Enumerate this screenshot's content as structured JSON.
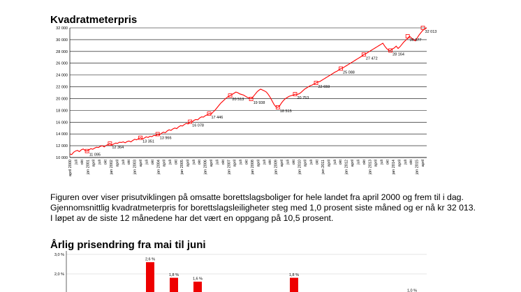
{
  "heading1": "Kvadratmeterpris",
  "heading2": "Årlig prisendring fra mai til juni",
  "paragraph": "Figuren over viser prisutviklingen på omsatte borettslagsboliger for hele landet fra april 2000 og frem til i dag. Gjennomsnittlig kvadratmeterpris for borettslagsleiligheter steg med 1,0 prosent siste måned og er nå kr 32 013. I løpet av de siste 12 månedene har det vært en oppgang på 10,5 prosent.",
  "colors": {
    "line": "#ff0000",
    "bar": "#ee0000",
    "grid": "#000000"
  },
  "chart_data": [
    {
      "type": "line",
      "title": "Kvadratmeterpris",
      "ylim": [
        10000,
        32000
      ],
      "yticks": [
        10000,
        12000,
        14000,
        16000,
        18000,
        20000,
        22000,
        24000,
        26000,
        28000,
        30000,
        32000
      ],
      "ytick_labels": [
        "10 000",
        "12 000",
        "14 000",
        "16 000",
        "18 000",
        "20 000",
        "22 000",
        "24 000",
        "26 000",
        "28 000",
        "30 000",
        "32 000"
      ],
      "grid": true,
      "legend": "none",
      "x_start": "april 2000",
      "x_end": "juni 2015",
      "x_labels": [
        "april 2000",
        "juli",
        "okt",
        "jan 2001",
        "april",
        "juli",
        "okt",
        "jan 2002",
        "april",
        "juli",
        "okt",
        "jan 2003",
        "april",
        "juli",
        "okt",
        "jan 2004",
        "april",
        "juli",
        "okt",
        "jan 2005",
        "april",
        "juli",
        "okt",
        "jan 2006",
        "april",
        "juli",
        "okt",
        "jan 2007",
        "april",
        "juli",
        "okt",
        "jan 2008",
        "april",
        "juli",
        "okt",
        "jan 2009",
        "april",
        "juli",
        "okt",
        "jan 2010",
        "april",
        "juli",
        "okt",
        "jan 2011",
        "april",
        "juli",
        "okt",
        "jan 2012",
        "april",
        "juli",
        "okt",
        "jan 2013",
        "april",
        "juli",
        "okt",
        "jan 2014",
        "april",
        "juli",
        "okt",
        "jan 2015",
        "april"
      ],
      "series": [
        {
          "values": [
            10600,
            10500,
            10900,
            11100,
            11200,
            11000,
            11300,
            11450,
            11200,
            11095,
            11300,
            11500,
            11400,
            11600,
            11750,
            11700,
            11900,
            12000,
            11800,
            12050,
            12200,
            12364,
            12100,
            12300,
            12450,
            12400,
            12600,
            12550,
            12650,
            12500,
            12700,
            12800,
            12650,
            12900,
            13100,
            13000,
            13200,
            13351,
            13150,
            13300,
            13500,
            13400,
            13600,
            13550,
            13750,
            13700,
            13966,
            13850,
            14100,
            14300,
            14200,
            14500,
            14700,
            14600,
            14850,
            15000,
            14900,
            15200,
            15400,
            15350,
            15600,
            15800,
            15700,
            16078,
            16000,
            16300,
            16450,
            16400,
            16700,
            16900,
            16850,
            17100,
            17250,
            17446,
            17350,
            17700,
            18000,
            18400,
            18800,
            19200,
            19500,
            19800,
            20100,
            20350,
            20513,
            20700,
            20900,
            21100,
            21000,
            20800,
            20700,
            20600,
            20400,
            20200,
            20100,
            19938,
            20300,
            20700,
            21100,
            21400,
            21600,
            21450,
            21300,
            21100,
            20700,
            20200,
            19600,
            19000,
            18600,
            18515,
            18800,
            19300,
            19700,
            20000,
            20200,
            20400,
            20500,
            20600,
            20753,
            20700,
            20800,
            21000,
            21300,
            21600,
            21800,
            22000,
            22200,
            22300,
            22500,
            22659,
            22800,
            22900,
            23100,
            23300,
            23500,
            23700,
            23900,
            24100,
            24300,
            24500,
            24650,
            24900,
            25088,
            25200,
            25400,
            25600,
            25800,
            26000,
            26200,
            26400,
            26600,
            26800,
            27000,
            27200,
            27472,
            27600,
            27800,
            28000,
            28200,
            28400,
            28600,
            28800,
            29000,
            29200,
            29400,
            28900,
            28500,
            28200,
            28164,
            28400,
            28600,
            28900,
            28500,
            28800,
            29200,
            29600,
            29900,
            30200,
            30577,
            30300,
            30000,
            29800,
            30300,
            30800,
            31200,
            31600,
            31800,
            32013
          ]
        }
      ],
      "annotations": [
        {
          "x_index": 9,
          "value": 11095,
          "label": "11 095"
        },
        {
          "x_index": 21,
          "value": 12364,
          "label": "12 364"
        },
        {
          "x_index": 37,
          "value": 13351,
          "label": "13 351"
        },
        {
          "x_index": 46,
          "value": 13966,
          "label": "13 966"
        },
        {
          "x_index": 63,
          "value": 16078,
          "label": "16 078"
        },
        {
          "x_index": 73,
          "value": 17446,
          "label": "17 446"
        },
        {
          "x_index": 84,
          "value": 20513,
          "label": "20 513"
        },
        {
          "x_index": 95,
          "value": 19938,
          "label": "19 938"
        },
        {
          "x_index": 109,
          "value": 18515,
          "label": "18 515"
        },
        {
          "x_index": 118,
          "value": 20753,
          "label": "20 753"
        },
        {
          "x_index": 129,
          "value": 22659,
          "label": "22 659"
        },
        {
          "x_index": 142,
          "value": 25088,
          "label": "25 088"
        },
        {
          "x_index": 154,
          "value": 27472,
          "label": "27 472"
        },
        {
          "x_index": 168,
          "value": 28164,
          "label": "28 164"
        },
        {
          "x_index": 177,
          "value": 30577,
          "label": "30 577"
        },
        {
          "x_index": 185,
          "value": 32013,
          "label": "32 013"
        }
      ]
    },
    {
      "type": "bar",
      "title": "Årlig prisendring fra mai til juni",
      "ylim": [
        0,
        3
      ],
      "yticks": [
        2,
        3
      ],
      "ytick_labels": [
        "2,0 %",
        "3,0 %"
      ],
      "series": [
        {
          "values": [
            2.6,
            1.8,
            1.6,
            1.8,
            1.0
          ],
          "labels": [
            "2,6 %",
            "1,8 %",
            "1,6 %",
            "1,8 %",
            "1,0 %"
          ]
        }
      ]
    }
  ]
}
